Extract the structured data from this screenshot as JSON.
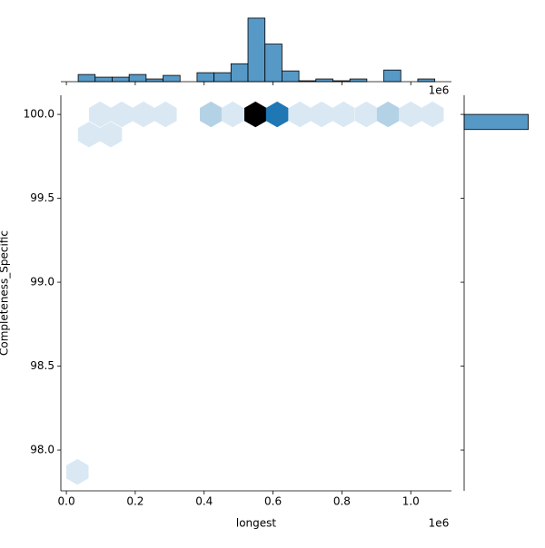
{
  "chart_data": {
    "type": "hexbin",
    "xlabel": "longest",
    "ylabel": "Completeness_Specific",
    "x_offset_label": "1e6",
    "xlim": [
      -16000,
      1118000
    ],
    "xticks": [
      {
        "value": 0,
        "label": "0.0"
      },
      {
        "value": 200000,
        "label": "0.2"
      },
      {
        "value": 400000,
        "label": "0.4"
      },
      {
        "value": 600000,
        "label": "0.6"
      },
      {
        "value": 800000,
        "label": "0.8"
      },
      {
        "value": 1000000,
        "label": "1.0"
      }
    ],
    "ylim": [
      97.757,
      100.114
    ],
    "yticks": [
      {
        "value": 98,
        "label": "98.0"
      },
      {
        "value": 98.5,
        "label": "98.5"
      },
      {
        "value": 99,
        "label": "99.0"
      },
      {
        "value": 99.5,
        "label": "99.5"
      },
      {
        "value": 100,
        "label": "100.0"
      }
    ],
    "cmap": [
      "#ffffff",
      "#1f77b4",
      "#000000"
    ],
    "count_max": 12,
    "hexes": {
      "x": [
        98000,
        161000,
        224000,
        288000,
        420000,
        483000,
        549000,
        612000,
        678000,
        741000,
        805000,
        871000,
        934000,
        1000000,
        1063000,
        66000,
        129000,
        32000
      ],
      "y": [
        100,
        100,
        100,
        100,
        100,
        100,
        100,
        100,
        100,
        100,
        100,
        100,
        100,
        100,
        100,
        99.88,
        99.88,
        97.87
      ],
      "counts": [
        1,
        1,
        1,
        1,
        2,
        1,
        12,
        6,
        1,
        1,
        1,
        1,
        2,
        1,
        1,
        1,
        1,
        1
      ]
    },
    "hist_color": "#5799c6",
    "top_hist": {
      "bins": [
        34300,
        83600,
        132900,
        182200,
        231500,
        280800,
        330100,
        379400,
        428700,
        478000,
        527300,
        576600,
        625900,
        675200,
        724500,
        773800,
        823100,
        872400,
        921700,
        971000,
        1020300,
        1069600
      ],
      "counts": [
        8,
        5,
        5,
        8,
        3,
        7,
        0,
        10,
        10,
        20,
        71,
        42,
        12,
        1,
        3,
        1,
        3,
        0,
        13,
        0,
        3
      ],
      "ylim": [
        0,
        75
      ]
    },
    "right_hist": {
      "bins": [
        99.91,
        100.0
      ],
      "counts": [
        225
      ],
      "xlim": [
        0,
        236
      ]
    }
  }
}
